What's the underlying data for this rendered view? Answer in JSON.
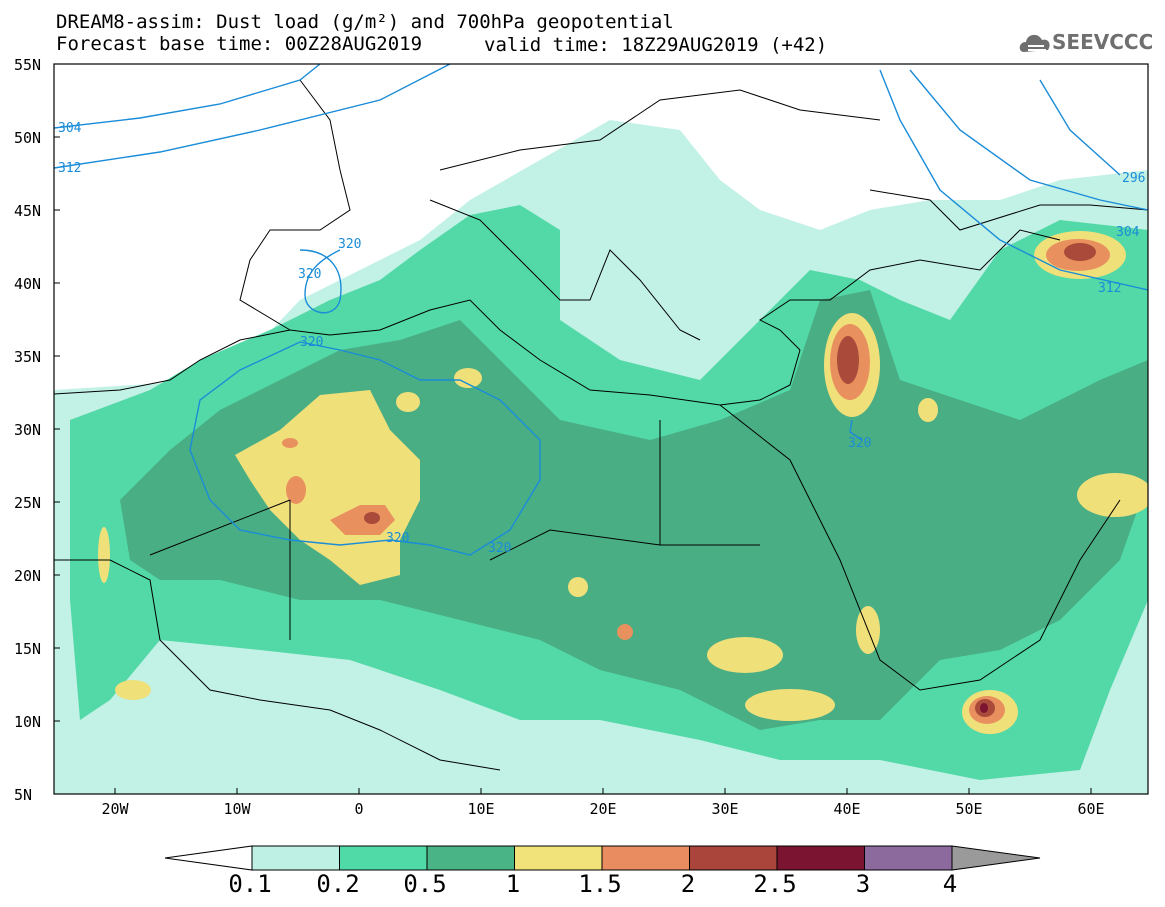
{
  "title": {
    "line1": "DREAM8-assim: Dust load (g/m²) and 700hPa geopotential",
    "line2": "Forecast base time: 00Z28AUG2019",
    "valid": "valid time: 18Z29AUG2019 (+42)"
  },
  "logo": {
    "text": "SEEVCCC",
    "icon": "cloud-icon"
  },
  "latitude_labels": [
    "55N",
    "50N",
    "45N",
    "40N",
    "35N",
    "30N",
    "25N",
    "20N",
    "15N",
    "10N",
    "5N"
  ],
  "longitude_labels": [
    "20W",
    "10W",
    "0",
    "10E",
    "20E",
    "30E",
    "40E",
    "50E",
    "60E"
  ],
  "contour_labels": [
    "304",
    "312",
    "320",
    "320",
    "320",
    "320",
    "320",
    "320",
    "296",
    "304",
    "312"
  ],
  "colorbar": {
    "labels": [
      "0.1",
      "0.2",
      "0.5",
      "1",
      "1.5",
      "2",
      "2.5",
      "3",
      "4"
    ],
    "colors": [
      "#bff0e4",
      "#4fdaa8",
      "#49b485",
      "#f2e27a",
      "#e98c60",
      "#a9453a",
      "#7a1430",
      "#8c6a9e",
      "#9a9a9a"
    ]
  },
  "colors": {
    "level_01": "#c2f1e6",
    "level_02": "#52d9a7",
    "level_05": "#4aae84",
    "level_1": "#f0e07a",
    "level_15": "#e9905f",
    "level_2": "#a94a3a",
    "level_25": "#7a1430",
    "contour": "#1a8cd8"
  }
}
